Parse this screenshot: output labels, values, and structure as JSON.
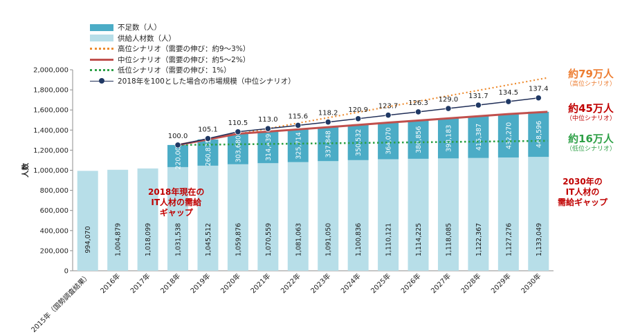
{
  "colors": {
    "shortage": "#4bacc6",
    "supply": "#b7dee8",
    "high": "#ed8b2f",
    "mid": "#c0504d",
    "low": "#2ea047",
    "market": "#1f2d56",
    "gap2018": "#c00000",
    "gap2030": "#c00000"
  },
  "legend": {
    "shortage": "不足数（人）",
    "supply": "供給人材数（人）",
    "high": "高位シナリオ（需要の伸び：約9～3%）",
    "mid": "中位シナリオ（需要の伸び：約5～2%）",
    "low": "低位シナリオ（需要の伸び：1%）",
    "market": "2018年を100とした場合の市場規模（中位シナリオ）"
  },
  "annotations": {
    "high_value": "約79万人",
    "high_note": "（高位シナリオ）",
    "mid_value": "約45万人",
    "mid_note": "（中位シナリオ）",
    "low_value": "約16万人",
    "low_note": "（低位シナリオ）",
    "gap2018": [
      "2018年現在の",
      "IT人材の需給",
      "ギャップ"
    ],
    "gap2030": [
      "2030年の",
      "IT人材の",
      "需給ギャップ"
    ]
  },
  "chart_data": {
    "type": "bar",
    "ylabel": "人数",
    "ylim": [
      0,
      2000000
    ],
    "yticks": [
      "0",
      "200,000",
      "400,000",
      "600,000",
      "800,000",
      "1,000,000",
      "1,200,000",
      "1,400,000",
      "1,600,000",
      "1,800,000",
      "2,000,000"
    ],
    "categories": [
      "2015年（国勢調査結果）",
      "2016年",
      "2017年",
      "2018年",
      "2019年",
      "2020年",
      "2021年",
      "2022年",
      "2023年",
      "2024年",
      "2025年",
      "2026年",
      "2027年",
      "2028年",
      "2029年",
      "2030年"
    ],
    "series": [
      {
        "name": "供給人材数（人）",
        "values": [
          994070,
          1004879,
          1018099,
          1031538,
          1045512,
          1059876,
          1070559,
          1081063,
          1091050,
          1100836,
          1110121,
          1114225,
          1118085,
          1122367,
          1127276,
          1133049
        ],
        "labels": [
          "994,070",
          "1,004,879",
          "1,018,099",
          "1,031,538",
          "1,045,512",
          "1,059,876",
          "1,070,559",
          "1,081,063",
          "1,091,050",
          "1,100,836",
          "1,110,121",
          "1,114,225",
          "1,118,085",
          "1,122,367",
          "1,127,276",
          "1,133,049"
        ]
      },
      {
        "name": "不足数（人）",
        "values": [
          null,
          null,
          null,
          220000,
          260835,
          303680,
          314439,
          325714,
          337848,
          350532,
          364070,
          380856,
          398183,
          415387,
          432270,
          448596
        ],
        "labels": [
          null,
          null,
          null,
          "220,000",
          "260,835",
          "303,680",
          "314,439",
          "325,714",
          "337,848",
          "350,532",
          "364,070",
          "380,856",
          "398,183",
          "415,387",
          "432,270",
          "448,596"
        ]
      },
      {
        "name": "高位シナリオ（需要の伸び：約9～3%）",
        "values": [
          null,
          null,
          null,
          1251538,
          null,
          null,
          null,
          null,
          null,
          null,
          null,
          null,
          null,
          null,
          null,
          1920000
        ]
      },
      {
        "name": "中位シナリオ（需要の伸び：約5～2%）",
        "values": [
          null,
          null,
          null,
          1251538,
          1306347,
          1363556,
          1384998,
          1406777,
          1428898,
          1451368,
          1474191,
          1495081,
          1516268,
          1537754,
          1559546,
          1581645
        ]
      },
      {
        "name": "低位シナリオ（需要の伸び：1%）",
        "values": [
          null,
          null,
          null,
          1251538,
          null,
          null,
          null,
          null,
          null,
          null,
          null,
          null,
          null,
          null,
          null,
          1293000
        ]
      },
      {
        "name": "2018年を100とした場合の市場規模（中位シナリオ）",
        "values": [
          null,
          null,
          null,
          100.0,
          105.1,
          110.5,
          113.0,
          115.6,
          118.2,
          120.9,
          123.7,
          126.3,
          129.0,
          131.7,
          134.5,
          137.4
        ],
        "labels": [
          null,
          null,
          null,
          "100.0",
          "105.1",
          "110.5",
          "113.0",
          "115.6",
          "118.2",
          "120.9",
          "123.7",
          "126.3",
          "129.0",
          "131.7",
          "134.5",
          "137.4"
        ]
      }
    ]
  }
}
